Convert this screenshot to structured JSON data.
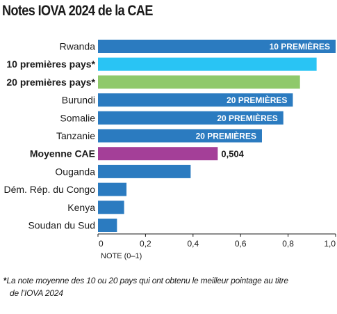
{
  "chart_data": {
    "type": "bar",
    "orientation": "horizontal",
    "title": "Notes IOVA 2024 de la CAE",
    "categories": [
      "Rwanda",
      "10 premières pays*",
      "20 premières pays*",
      "Burundi",
      "Somalie",
      "Tanzanie",
      "Moyenne CAE",
      "Ouganda",
      "Dém. Rép. du Congo",
      "Kenya",
      "Soudan du Sud"
    ],
    "values": [
      1.0,
      0.92,
      0.85,
      0.82,
      0.78,
      0.69,
      0.504,
      0.39,
      0.12,
      0.11,
      0.08
    ],
    "bold_categories": [
      "10 premières pays*",
      "20 premières pays*",
      "Moyenne CAE"
    ],
    "bar_colors": [
      "#2b7bc0",
      "#29c4f4",
      "#8fc96b",
      "#2b7bc0",
      "#2b7bc0",
      "#2b7bc0",
      "#a43f98",
      "#2b7bc0",
      "#2b7bc0",
      "#2b7bc0",
      "#2b7bc0"
    ],
    "bar_labels": [
      "10 PREMIÈRES",
      "",
      "",
      "20 PREMIÈRES",
      "20 PREMIÈRES",
      "20 PREMIÈRES",
      "",
      "",
      "",
      "",
      ""
    ],
    "value_labels": [
      "",
      "",
      "",
      "",
      "",
      "",
      "0,504",
      "",
      "",
      "",
      ""
    ],
    "xlabel": "NOTE (0–1)",
    "xlim": [
      0,
      1.0
    ],
    "xticks": [
      0,
      0.2,
      0.4,
      0.6,
      0.8,
      1.0
    ],
    "xtick_labels": [
      "0",
      "0,2",
      "0,4",
      "0,6",
      "0,8",
      "1,0"
    ],
    "grid": false,
    "legend": false
  },
  "footnote": {
    "marker": "*",
    "line1": "La note moyenne des 10 ou 20 pays qui ont obtenu le meilleur pointage au titre",
    "line2": "de l’IOVA 2024"
  }
}
